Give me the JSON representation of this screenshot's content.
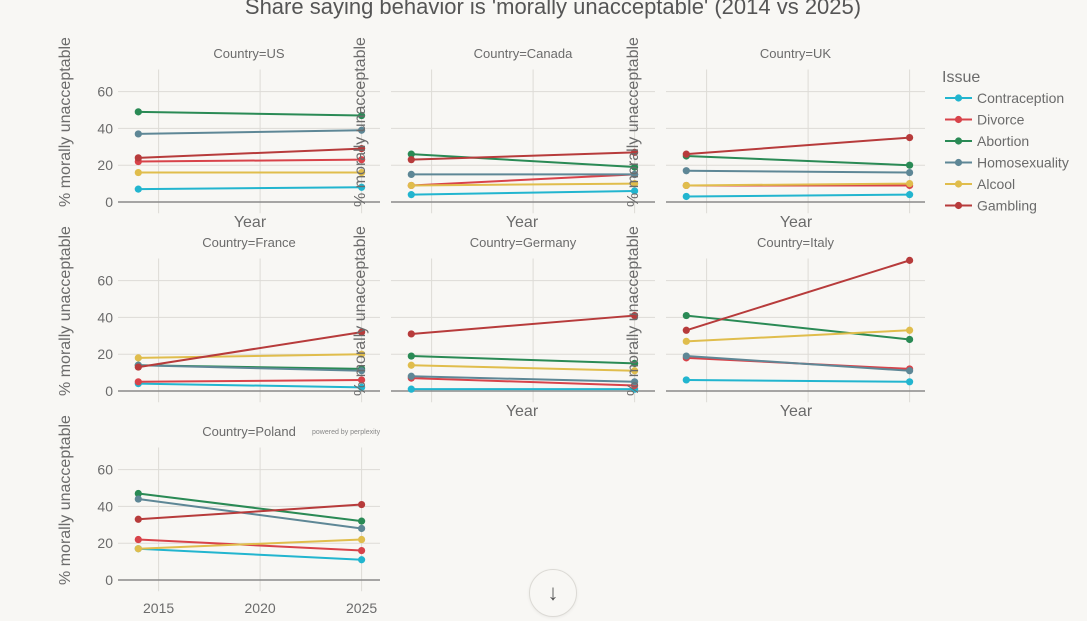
{
  "chart_data": {
    "type": "line",
    "title": "Share saying behavior is 'morally unacceptable' (2014 vs 2025)",
    "xlabel": "Year",
    "ylabel": "% morally unacceptable",
    "x": [
      2014,
      2025
    ],
    "xticks": [
      "2015",
      "2020",
      "2025"
    ],
    "yticks": [
      "0",
      "20",
      "40",
      "60"
    ],
    "ylim": [
      -5,
      76
    ],
    "xlim": [
      2013,
      2025.9
    ],
    "grid": true,
    "legend": {
      "title": "Issue",
      "placement": "top-right"
    },
    "watermark": "powered by perplexity",
    "series_meta": [
      {
        "name": "Contraception",
        "color": "#22b5cf"
      },
      {
        "name": "Divorce",
        "color": "#d8434a"
      },
      {
        "name": "Abortion",
        "color": "#2a8a55"
      },
      {
        "name": "Homosexuality",
        "color": "#5e8796"
      },
      {
        "name": "Alcool",
        "color": "#e0bd4c"
      },
      {
        "name": "Gambling",
        "color": "#b73b3b"
      }
    ],
    "facets": [
      {
        "label": "Country=US",
        "series": {
          "Contraception": [
            7,
            8
          ],
          "Divorce": [
            22,
            23
          ],
          "Abortion": [
            49,
            47
          ],
          "Homosexuality": [
            37,
            39
          ],
          "Alcool": [
            16,
            16
          ],
          "Gambling": [
            24,
            29
          ]
        }
      },
      {
        "label": "Country=Canada",
        "series": {
          "Contraception": [
            4,
            6
          ],
          "Divorce": [
            9,
            15
          ],
          "Abortion": [
            26,
            19
          ],
          "Homosexuality": [
            15,
            15
          ],
          "Alcool": [
            9,
            10
          ],
          "Gambling": [
            23,
            27
          ]
        }
      },
      {
        "label": "Country=UK",
        "series": {
          "Contraception": [
            3,
            4
          ],
          "Divorce": [
            9,
            9
          ],
          "Abortion": [
            25,
            20
          ],
          "Homosexuality": [
            17,
            16
          ],
          "Alcool": [
            9,
            10
          ],
          "Gambling": [
            26,
            35
          ]
        }
      },
      {
        "label": "Country=France",
        "series": {
          "Contraception": [
            4,
            2
          ],
          "Divorce": [
            5,
            6
          ],
          "Abortion": [
            14,
            12
          ],
          "Homosexuality": [
            14,
            11
          ],
          "Alcool": [
            18,
            20
          ],
          "Gambling": [
            13,
            32
          ]
        }
      },
      {
        "label": "Country=Germany",
        "series": {
          "Contraception": [
            1,
            1
          ],
          "Divorce": [
            7,
            3
          ],
          "Abortion": [
            19,
            15
          ],
          "Homosexuality": [
            8,
            5
          ],
          "Alcool": [
            14,
            11
          ],
          "Gambling": [
            31,
            41
          ]
        }
      },
      {
        "label": "Country=Italy",
        "series": {
          "Contraception": [
            6,
            5
          ],
          "Divorce": [
            18,
            12
          ],
          "Abortion": [
            41,
            28
          ],
          "Homosexuality": [
            19,
            11
          ],
          "Alcool": [
            27,
            33
          ],
          "Gambling": [
            33,
            71
          ]
        }
      },
      {
        "label": "Country=Poland",
        "series": {
          "Contraception": [
            17,
            11
          ],
          "Divorce": [
            22,
            16
          ],
          "Abortion": [
            47,
            32
          ],
          "Homosexuality": [
            44,
            28
          ],
          "Alcool": [
            17,
            22
          ],
          "Gambling": [
            33,
            41
          ]
        }
      }
    ]
  },
  "ui": {
    "scroll_down_icon": "↓"
  }
}
